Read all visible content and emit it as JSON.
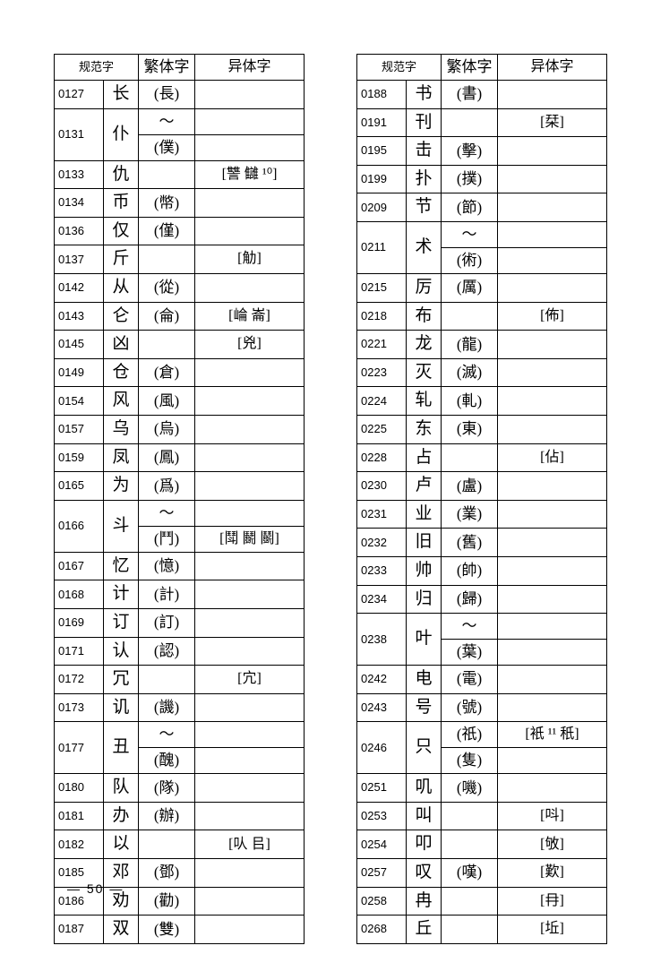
{
  "headers": {
    "num": "",
    "std": "规范字",
    "trad": "繁体字",
    "var": "异体字"
  },
  "left": [
    {
      "num": "0127",
      "char": "长",
      "trad": "(長)",
      "var": ""
    },
    {
      "num": "0131",
      "char": "仆",
      "trad": "～",
      "var": "",
      "rowspan": 2
    },
    {
      "num": "",
      "char": "",
      "trad": "(僕)",
      "var": "",
      "sub": true
    },
    {
      "num": "0133",
      "char": "仇",
      "trad": "",
      "var": "[讐 讎 ¹⁰]"
    },
    {
      "num": "0134",
      "char": "币",
      "trad": "(幣)",
      "var": ""
    },
    {
      "num": "0136",
      "char": "仅",
      "trad": "(僅)",
      "var": ""
    },
    {
      "num": "0137",
      "char": "斤",
      "trad": "",
      "var": "[觔]"
    },
    {
      "num": "0142",
      "char": "从",
      "trad": "(從)",
      "var": ""
    },
    {
      "num": "0143",
      "char": "仑",
      "trad": "(侖)",
      "var": "[崘 崙]"
    },
    {
      "num": "0145",
      "char": "凶",
      "trad": "",
      "var": "[兇]"
    },
    {
      "num": "0149",
      "char": "仓",
      "trad": "(倉)",
      "var": ""
    },
    {
      "num": "0154",
      "char": "风",
      "trad": "(風)",
      "var": ""
    },
    {
      "num": "0157",
      "char": "乌",
      "trad": "(烏)",
      "var": ""
    },
    {
      "num": "0159",
      "char": "凤",
      "trad": "(鳳)",
      "var": ""
    },
    {
      "num": "0165",
      "char": "为",
      "trad": "(爲)",
      "var": ""
    },
    {
      "num": "0166",
      "char": "斗",
      "trad": "～",
      "var": "",
      "rowspan": 2
    },
    {
      "num": "",
      "char": "",
      "trad": "(鬥)",
      "var": "[鬦 鬭 鬬]",
      "sub": true
    },
    {
      "num": "0167",
      "char": "忆",
      "trad": "(憶)",
      "var": ""
    },
    {
      "num": "0168",
      "char": "计",
      "trad": "(計)",
      "var": ""
    },
    {
      "num": "0169",
      "char": "订",
      "trad": "(訂)",
      "var": ""
    },
    {
      "num": "0171",
      "char": "认",
      "trad": "(認)",
      "var": ""
    },
    {
      "num": "0172",
      "char": "冗",
      "trad": "",
      "var": "[宂]"
    },
    {
      "num": "0173",
      "char": "讥",
      "trad": "(譏)",
      "var": ""
    },
    {
      "num": "0177",
      "char": "丑",
      "trad": "～",
      "var": "",
      "rowspan": 2
    },
    {
      "num": "",
      "char": "",
      "trad": "(醜)",
      "var": "",
      "sub": true
    },
    {
      "num": "0180",
      "char": "队",
      "trad": "(隊)",
      "var": ""
    },
    {
      "num": "0181",
      "char": "办",
      "trad": "(辦)",
      "var": ""
    },
    {
      "num": "0182",
      "char": "以",
      "trad": "",
      "var": "[㕥 㠯]"
    },
    {
      "num": "0185",
      "char": "邓",
      "trad": "(鄧)",
      "var": ""
    },
    {
      "num": "0186",
      "char": "劝",
      "trad": "(勸)",
      "var": ""
    },
    {
      "num": "0187",
      "char": "双",
      "trad": "(雙)",
      "var": ""
    }
  ],
  "right": [
    {
      "num": "0188",
      "char": "书",
      "trad": "(書)",
      "var": ""
    },
    {
      "num": "0191",
      "char": "刊",
      "trad": "",
      "var": "[栞]"
    },
    {
      "num": "0195",
      "char": "击",
      "trad": "(擊)",
      "var": ""
    },
    {
      "num": "0199",
      "char": "扑",
      "trad": "(撲)",
      "var": ""
    },
    {
      "num": "0209",
      "char": "节",
      "trad": "(節)",
      "var": ""
    },
    {
      "num": "0211",
      "char": "术",
      "trad": "～",
      "var": "",
      "rowspan": 2
    },
    {
      "num": "",
      "char": "",
      "trad": "(術)",
      "var": "",
      "sub": true
    },
    {
      "num": "0215",
      "char": "厉",
      "trad": "(厲)",
      "var": ""
    },
    {
      "num": "0218",
      "char": "布",
      "trad": "",
      "var": "[佈]"
    },
    {
      "num": "0221",
      "char": "龙",
      "trad": "(龍)",
      "var": ""
    },
    {
      "num": "0223",
      "char": "灭",
      "trad": "(滅)",
      "var": ""
    },
    {
      "num": "0224",
      "char": "轧",
      "trad": "(軋)",
      "var": ""
    },
    {
      "num": "0225",
      "char": "东",
      "trad": "(東)",
      "var": ""
    },
    {
      "num": "0228",
      "char": "占",
      "trad": "",
      "var": "[佔]"
    },
    {
      "num": "0230",
      "char": "卢",
      "trad": "(盧)",
      "var": ""
    },
    {
      "num": "0231",
      "char": "业",
      "trad": "(業)",
      "var": ""
    },
    {
      "num": "0232",
      "char": "旧",
      "trad": "(舊)",
      "var": ""
    },
    {
      "num": "0233",
      "char": "帅",
      "trad": "(帥)",
      "var": ""
    },
    {
      "num": "0234",
      "char": "归",
      "trad": "(歸)",
      "var": ""
    },
    {
      "num": "0238",
      "char": "叶",
      "trad": "～",
      "var": "",
      "rowspan": 2
    },
    {
      "num": "",
      "char": "",
      "trad": "(葉)",
      "var": "",
      "sub": true
    },
    {
      "num": "0242",
      "char": "电",
      "trad": "(電)",
      "var": ""
    },
    {
      "num": "0243",
      "char": "号",
      "trad": "(號)",
      "var": ""
    },
    {
      "num": "0246",
      "char": "只",
      "trad": "(祇)",
      "var": "[衹 ¹¹ 秖]",
      "rowspan": 2
    },
    {
      "num": "",
      "char": "",
      "trad": "(隻)",
      "var": "",
      "sub": true
    },
    {
      "num": "0251",
      "char": "叽",
      "trad": "(嘰)",
      "var": ""
    },
    {
      "num": "0253",
      "char": "叫",
      "trad": "",
      "var": "[呌]"
    },
    {
      "num": "0254",
      "char": "叩",
      "trad": "",
      "var": "[敂]"
    },
    {
      "num": "0257",
      "char": "叹",
      "trad": "(嘆)",
      "var": "[歎]"
    },
    {
      "num": "0258",
      "char": "冉",
      "trad": "",
      "var": "[冄]"
    },
    {
      "num": "0268",
      "char": "丘",
      "trad": "",
      "var": "[坵]"
    }
  ],
  "pagenum": "—  50  —"
}
